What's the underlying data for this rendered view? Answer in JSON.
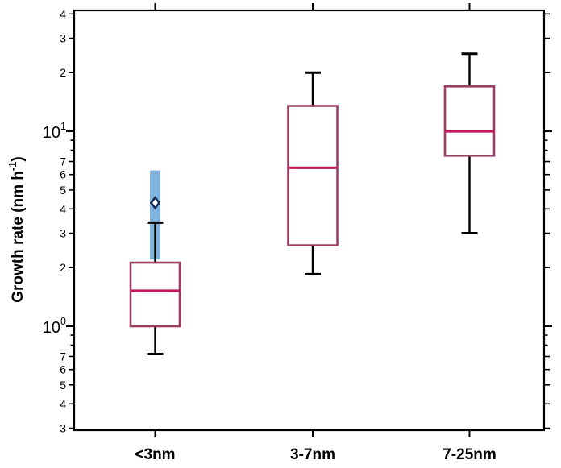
{
  "figure": {
    "background_color": "#ffffff"
  },
  "chart_data": {
    "type": "box",
    "title": "",
    "xlabel": "",
    "ylabel": "Growth rate (nm h⁻¹)",
    "ylabel_rich": {
      "base": "Growth rate (nm h",
      "sup": "-1",
      "suffix": ")"
    },
    "y_scale": "log10",
    "ylim": [
      0.293,
      41.7
    ],
    "grid": "off",
    "legend": "none",
    "frame": "full box, mirrored outward ticks",
    "categories": [
      "<3nm",
      "3-7nm",
      "7-25nm"
    ],
    "boxes": [
      {
        "category": "<3nm",
        "whisker_low": 0.72,
        "q1": 1.0,
        "median": 1.52,
        "q3": 2.12,
        "whisker_high": 3.4
      },
      {
        "category": "3-7nm",
        "whisker_low": 1.85,
        "q1": 2.6,
        "median": 6.5,
        "q3": 13.5,
        "whisker_high": 20
      },
      {
        "category": "7-25nm",
        "whisker_low": 3.0,
        "q1": 7.5,
        "median": 10,
        "q3": 17,
        "whisker_high": 25
      }
    ],
    "reference_bar": {
      "category_index": 0,
      "low": 2.2,
      "high": 6.3,
      "marker_value": 4.3,
      "marker_shape": "open-diamond"
    },
    "y_ticks": [
      {
        "v": 40,
        "label": "4"
      },
      {
        "v": 30,
        "label": "3"
      },
      {
        "v": 20,
        "label": "2"
      },
      {
        "v": 10,
        "power_base": "10",
        "power_exp": "1"
      },
      {
        "v": 9
      },
      {
        "v": 8
      },
      {
        "v": 7,
        "label": "7"
      },
      {
        "v": 6,
        "label": "6"
      },
      {
        "v": 5,
        "label": "5"
      },
      {
        "v": 4,
        "label": "4"
      },
      {
        "v": 3,
        "label": "3"
      },
      {
        "v": 2,
        "label": "2"
      },
      {
        "v": 1,
        "power_base": "10",
        "power_exp": "0"
      },
      {
        "v": 0.9
      },
      {
        "v": 0.8
      },
      {
        "v": 0.7,
        "label": "7"
      },
      {
        "v": 0.6,
        "label": "6"
      },
      {
        "v": 0.5,
        "label": "5"
      },
      {
        "v": 0.4,
        "label": "4"
      },
      {
        "v": 0.3,
        "label": "3"
      }
    ],
    "colors": {
      "box_stroke": "#9B3D62",
      "median_line": "#C2185B",
      "whisker": "#000000",
      "frame": "#000000",
      "reference_bar_fill": "#7FB2DD",
      "diamond_stroke": "#16294F",
      "diamond_fill": "#ffffff"
    }
  }
}
